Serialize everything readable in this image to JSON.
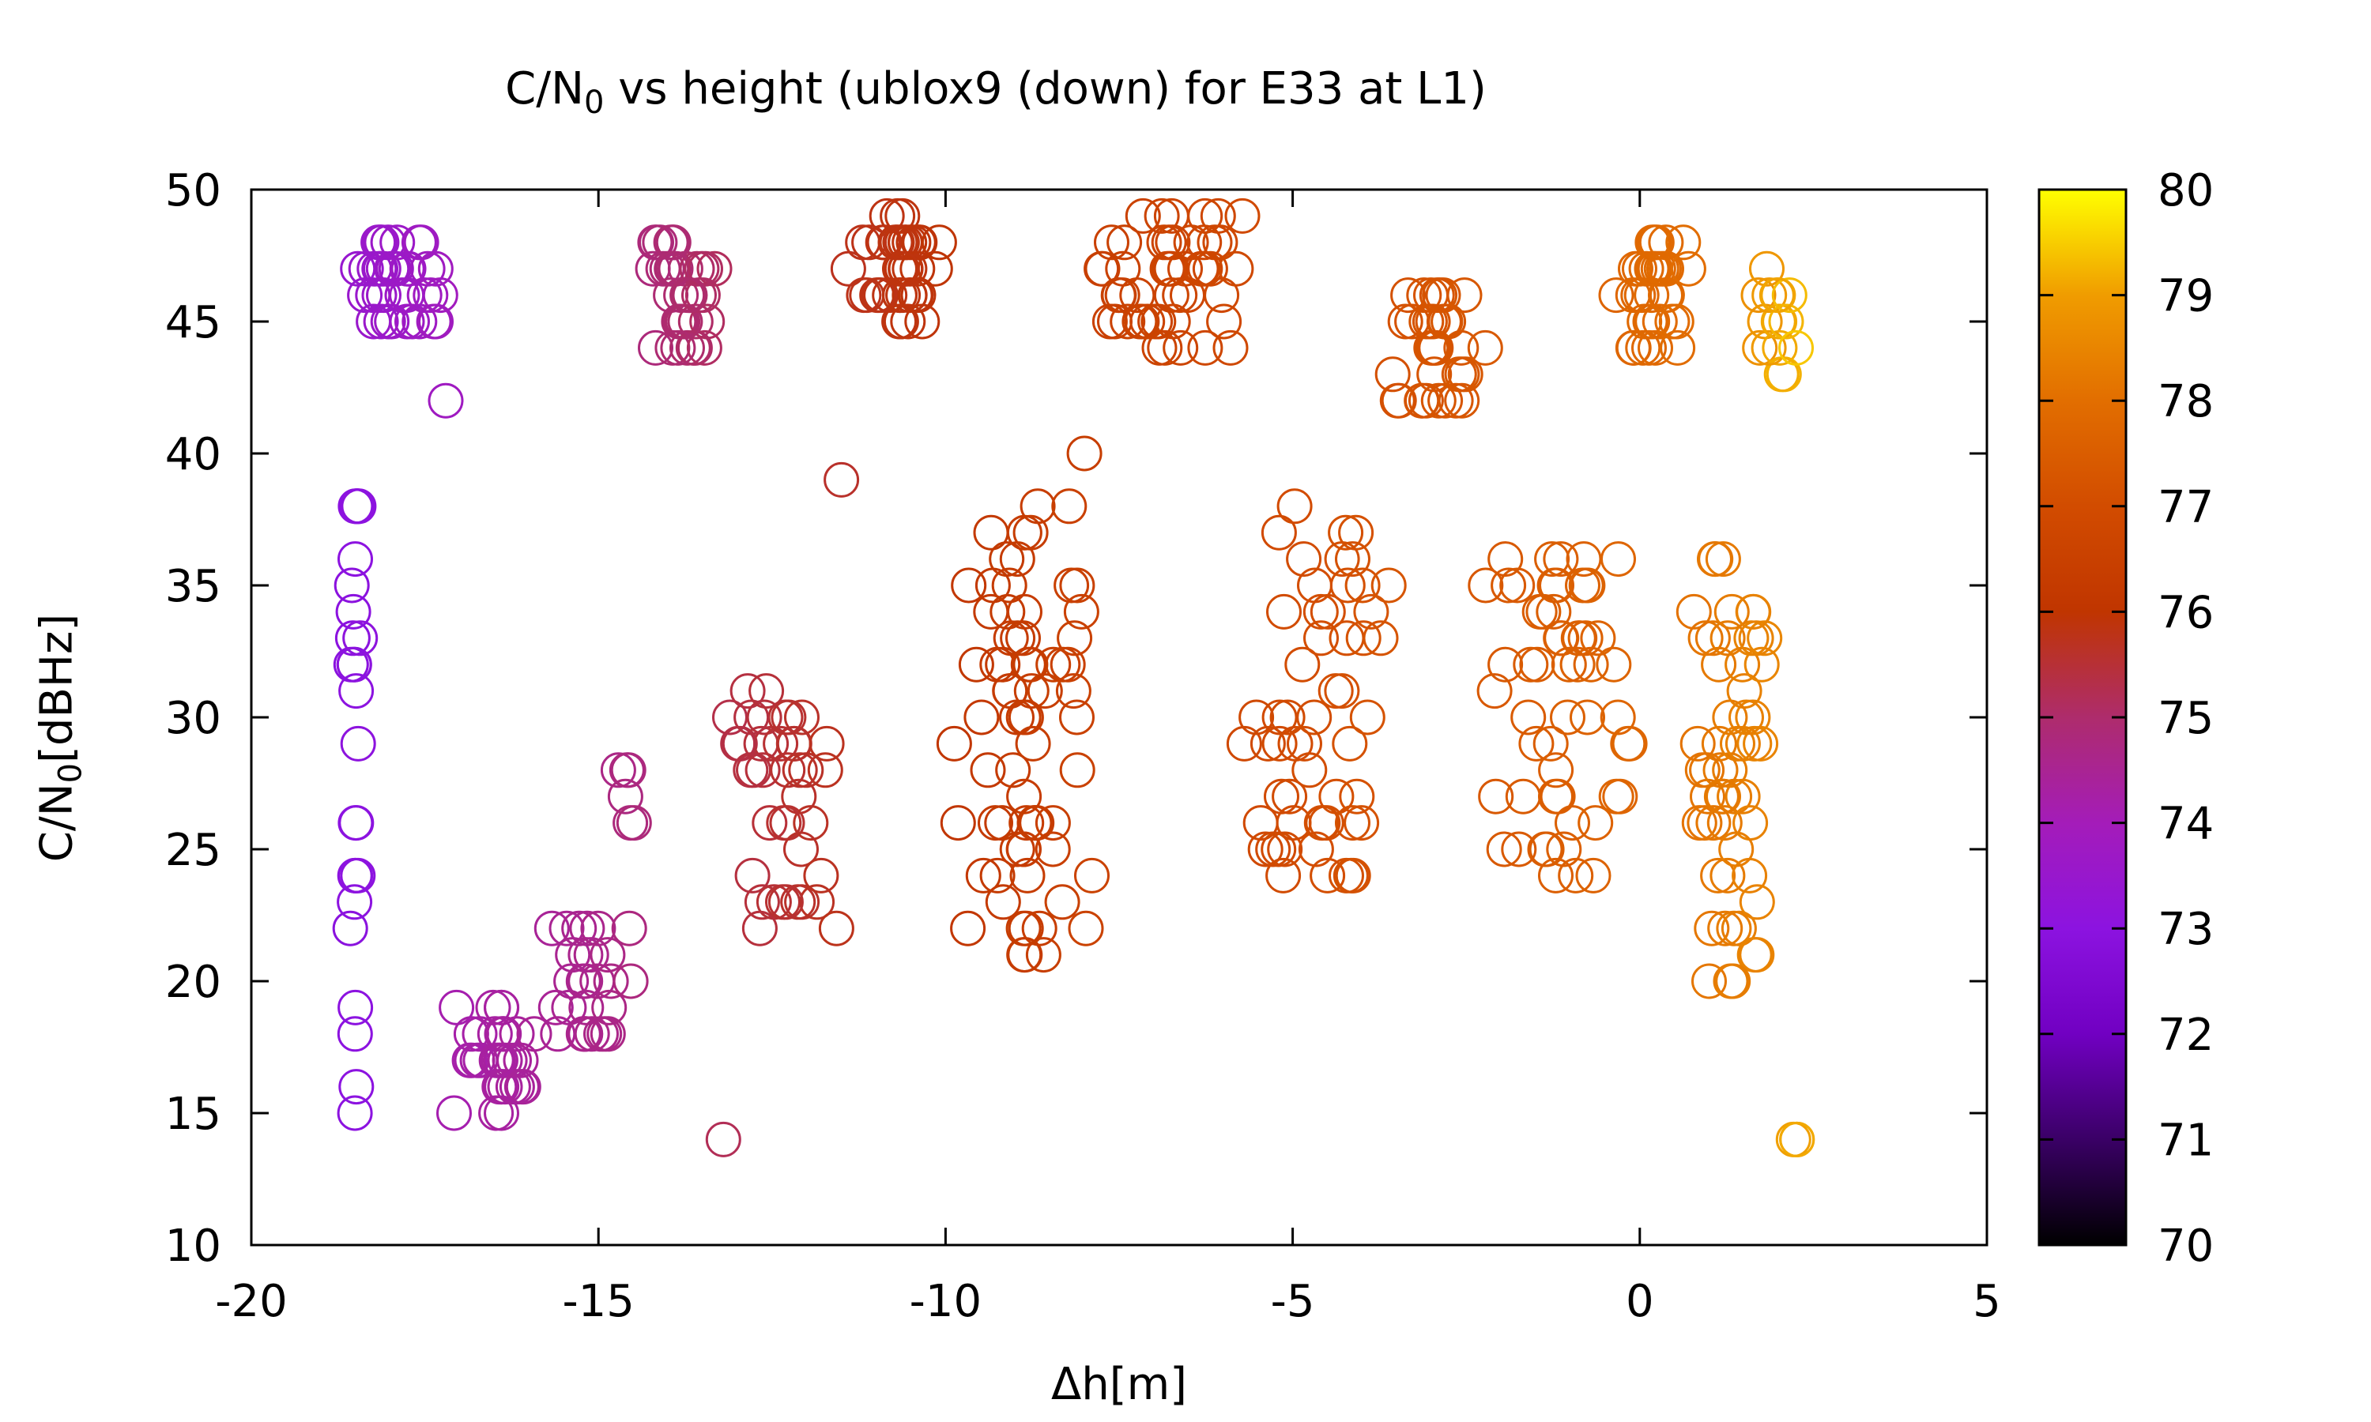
{
  "chart_data": {
    "type": "scatter",
    "title_parts": {
      "pre": "C/N",
      "sub": "0",
      "post": " vs height (ublox9 (down) for E33 at L1)"
    },
    "ylabel_parts": {
      "pre": "C/N",
      "sub": "0",
      "post": "[dBHz]"
    },
    "xlabel": "Δh[m]",
    "xlim": [
      -20,
      5
    ],
    "ylim": [
      10,
      50
    ],
    "xticks": [
      "-20",
      "-15",
      "-10",
      "-5",
      "0",
      "5"
    ],
    "yticks": [
      "10",
      "15",
      "20",
      "25",
      "30",
      "35",
      "40",
      "45",
      "50"
    ],
    "colorbar": {
      "min": 70,
      "max": 80,
      "ticks": [
        "70",
        "71",
        "72",
        "73",
        "74",
        "75",
        "76",
        "77",
        "78",
        "79",
        "80"
      ],
      "palette": [
        "#000000",
        "#3a0066",
        "#7100c2",
        "#8c13e0",
        "#a41cb9",
        "#ae2c6c",
        "#c03500",
        "#d24c00",
        "#e26e00",
        "#f09c00",
        "#ffff00"
      ]
    },
    "marker": "open-circle",
    "clusters": [
      {
        "x": [
          -18.6,
          -18.4
        ],
        "y": [
          15,
          40
        ],
        "c": [
          72.9,
          73.1
        ],
        "n": 26
      },
      {
        "x": [
          -18.6,
          -17.2
        ],
        "y": [
          45,
          48
        ],
        "c": [
          73.4,
          73.9
        ],
        "n": 40
      },
      {
        "x": [
          -17.2,
          -17.2
        ],
        "y": [
          42,
          42
        ],
        "c": [
          73.8,
          73.8
        ],
        "n": 1
      },
      {
        "x": [
          -17.2,
          -15.8
        ],
        "y": [
          15,
          19
        ],
        "c": [
          74.1,
          74.5
        ],
        "n": 34
      },
      {
        "x": [
          -15.8,
          -14.4
        ],
        "y": [
          18,
          22
        ],
        "c": [
          74.4,
          74.8
        ],
        "n": 28
      },
      {
        "x": [
          -14.8,
          -14.4
        ],
        "y": [
          24,
          29
        ],
        "c": [
          74.6,
          74.9
        ],
        "n": 6
      },
      {
        "x": [
          -14.5,
          -13.2
        ],
        "y": [
          44,
          48
        ],
        "c": [
          74.7,
          75.2
        ],
        "n": 40
      },
      {
        "x": [
          -13.2,
          -13.2
        ],
        "y": [
          14,
          14
        ],
        "c": [
          75.2,
          75.2
        ],
        "n": 1
      },
      {
        "x": [
          -13.2,
          -11.4
        ],
        "y": [
          22,
          31
        ],
        "c": [
          75.3,
          75.8
        ],
        "n": 40
      },
      {
        "x": [
          -11.5,
          -11.5
        ],
        "y": [
          39,
          39
        ],
        "c": [
          75.6,
          75.6
        ],
        "n": 1
      },
      {
        "x": [
          -11.5,
          -9.9
        ],
        "y": [
          45,
          49
        ],
        "c": [
          75.7,
          76.0
        ],
        "n": 45
      },
      {
        "x": [
          -10.0,
          -7.8
        ],
        "y": [
          21,
          38
        ],
        "c": [
          76.0,
          76.6
        ],
        "n": 70
      },
      {
        "x": [
          -8.0,
          -8.0
        ],
        "y": [
          40,
          40
        ],
        "c": [
          76.4,
          76.4
        ],
        "n": 1
      },
      {
        "x": [
          -8.0,
          -5.6
        ],
        "y": [
          44,
          49
        ],
        "c": [
          76.4,
          76.9
        ],
        "n": 50
      },
      {
        "x": [
          -5.8,
          -3.4
        ],
        "y": [
          24,
          38
        ],
        "c": [
          76.8,
          77.3
        ],
        "n": 55
      },
      {
        "x": [
          -3.6,
          -2.2
        ],
        "y": [
          42,
          46
        ],
        "c": [
          77.1,
          77.4
        ],
        "n": 35
      },
      {
        "x": [
          -2.3,
          0.0
        ],
        "y": [
          24,
          37
        ],
        "c": [
          77.3,
          77.8
        ],
        "n": 55
      },
      {
        "x": [
          -0.4,
          0.8
        ],
        "y": [
          44,
          48
        ],
        "c": [
          77.7,
          78.0
        ],
        "n": 35
      },
      {
        "x": [
          0.6,
          2.0
        ],
        "y": [
          20,
          36
        ],
        "c": [
          78.0,
          78.6
        ],
        "n": 55
      },
      {
        "x": [
          1.6,
          2.3
        ],
        "y": [
          42,
          47
        ],
        "c": [
          78.6,
          79.5
        ],
        "n": 16
      },
      {
        "x": [
          2.2,
          2.3
        ],
        "y": [
          13,
          15
        ],
        "c": [
          79.0,
          79.2
        ],
        "n": 3
      }
    ]
  }
}
